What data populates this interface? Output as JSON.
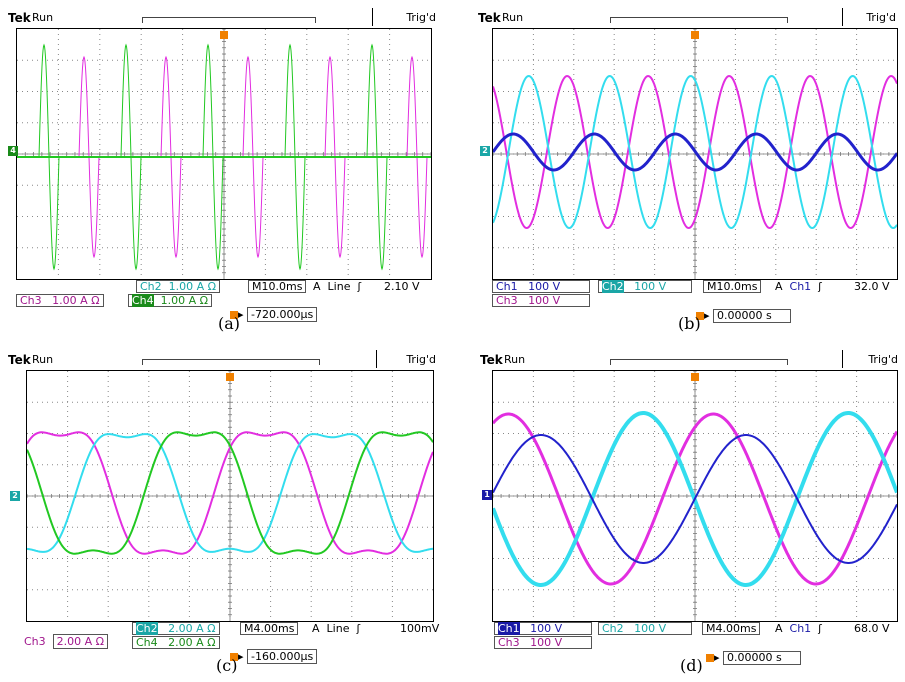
{
  "panels": [
    {
      "id": "a",
      "caption": "(a)",
      "header": {
        "brand": "Tek",
        "status": "Run",
        "trigger": "Trig'd"
      },
      "channel_marker": "4",
      "channel_marker_color": "#1a8a1a",
      "readouts": {
        "row1": [
          {
            "label": "Ch2",
            "value": "1.00 A Ω",
            "color": "#1aa6a6"
          },
          {
            "label": "M",
            "value": "10.0ms"
          },
          {
            "label": "A",
            "value": "Line"
          },
          {
            "label": "slope",
            "value": "2.10 V"
          }
        ],
        "row2": [
          {
            "label": "Ch3",
            "value": "1.00 A Ω",
            "color": "#a0168c"
          },
          {
            "label": "Ch4",
            "value": "1.00 A Ω",
            "color": "#1a8a1a"
          }
        ],
        "trigger_pos": "-720.000µs"
      },
      "waves": {
        "kind": "pulses",
        "colors": [
          "#e22ee0",
          "#22c822",
          "#33ddee"
        ]
      }
    },
    {
      "id": "b",
      "caption": "(b)",
      "header": {
        "brand": "Tek",
        "status": "Run",
        "trigger": "Trig'd"
      },
      "channel_marker": "2",
      "channel_marker_color": "#1aa6a6",
      "readouts": {
        "row1": [
          {
            "label": "Ch1",
            "value": "100 V",
            "color": "#1a1aa6"
          },
          {
            "label": "Ch2",
            "value": "100 V",
            "color": "#1aa6a6"
          },
          {
            "label": "M",
            "value": "10.0ms"
          },
          {
            "label": "A",
            "value": "Ch1"
          },
          {
            "label": "slope",
            "value": "32.0 V"
          }
        ],
        "row2": [
          {
            "label": "Ch3",
            "value": "100 V",
            "color": "#a0168c"
          }
        ],
        "trigger_pos": "0.00000 s"
      },
      "waves": {
        "kind": "sines",
        "colors": [
          "#e22ee0",
          "#33ddee",
          "#2222cc"
        ]
      }
    },
    {
      "id": "c",
      "caption": "(c)",
      "header": {
        "brand": "Tek",
        "status": "Run",
        "trigger": "Trig'd"
      },
      "channel_marker": "2",
      "channel_marker_color": "#1aa6a6",
      "readouts": {
        "row1": [
          {
            "label": "Ch2",
            "value": "2.00 A Ω",
            "color": "#1aa6a6"
          },
          {
            "label": "M",
            "value": "4.00ms"
          },
          {
            "label": "A",
            "value": "Line"
          },
          {
            "label": "slope",
            "value": "100mV"
          }
        ],
        "row2": [
          {
            "label": "Ch3",
            "value": "2.00 A Ω",
            "color": "#a0168c"
          },
          {
            "label": "Ch4",
            "value": "2.00 A Ω",
            "color": "#1a8a1a"
          }
        ],
        "trigger_pos": "-160.000µs"
      },
      "waves": {
        "kind": "distorted",
        "colors": [
          "#e22ee0",
          "#33ddee",
          "#22c822"
        ]
      }
    },
    {
      "id": "d",
      "caption": "(d)",
      "header": {
        "brand": "Tek",
        "status": "Run",
        "trigger": "Trig'd"
      },
      "channel_marker": "1",
      "channel_marker_color": "#1a1aa6",
      "readouts": {
        "row1": [
          {
            "label": "Ch1",
            "value": "100 V",
            "color": "#1a1aa6"
          },
          {
            "label": "Ch2",
            "value": "100 V",
            "color": "#1aa6a6"
          },
          {
            "label": "M",
            "value": "4.00ms"
          },
          {
            "label": "A",
            "value": "Ch1"
          },
          {
            "label": "slope",
            "value": "68.0 V"
          }
        ],
        "row2": [
          {
            "label": "Ch3",
            "value": "100 V",
            "color": "#a0168c"
          }
        ],
        "trigger_pos": "0.00000 s"
      },
      "waves": {
        "kind": "sines_slow",
        "colors": [
          "#e22ee0",
          "#33ddee",
          "#2222cc"
        ]
      }
    }
  ]
}
